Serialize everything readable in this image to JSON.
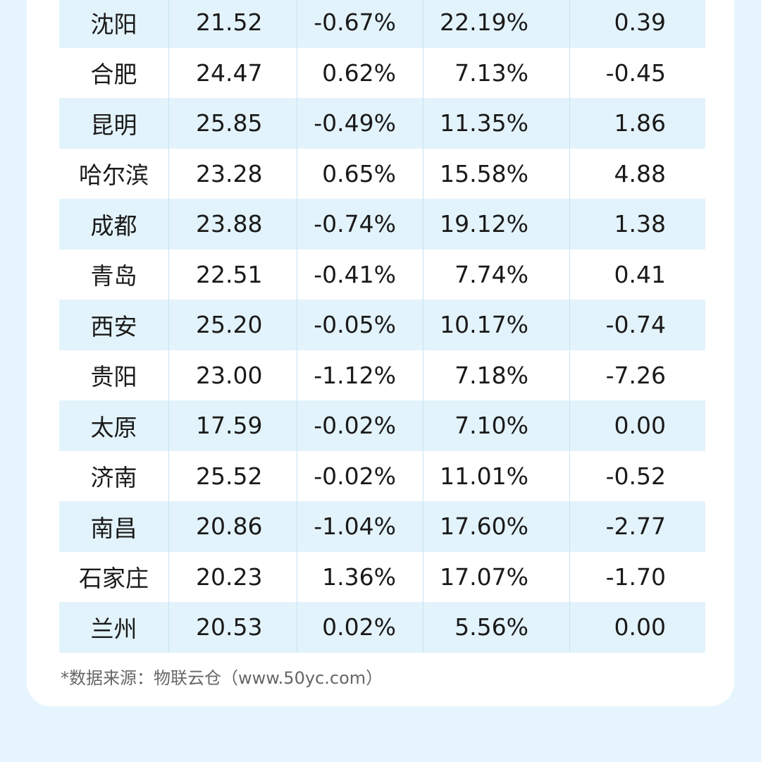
{
  "table": {
    "rows": [
      [
        "沈阳",
        "21.52",
        "-0.67%",
        "22.19%",
        "0.39"
      ],
      [
        "合肥",
        "24.47",
        "0.62%",
        "7.13%",
        "-0.45"
      ],
      [
        "昆明",
        "25.85",
        "-0.49%",
        "11.35%",
        "1.86"
      ],
      [
        "哈尔滨",
        "23.28",
        "0.65%",
        "15.58%",
        "4.88"
      ],
      [
        "成都",
        "23.88",
        "-0.74%",
        "19.12%",
        "1.38"
      ],
      [
        "青岛",
        "22.51",
        "-0.41%",
        "7.74%",
        "0.41"
      ],
      [
        "西安",
        "25.20",
        "-0.05%",
        "10.17%",
        "-0.74"
      ],
      [
        "贵阳",
        "23.00",
        "-1.12%",
        "7.18%",
        "-7.26"
      ],
      [
        "太原",
        "17.59",
        "-0.02%",
        "7.10%",
        "0.00"
      ],
      [
        "济南",
        "25.52",
        "-0.02%",
        "11.01%",
        "-0.52"
      ],
      [
        "南昌",
        "20.86",
        "-1.04%",
        "17.60%",
        "-2.77"
      ],
      [
        "石家庄",
        "20.23",
        "1.36%",
        "17.07%",
        "-1.70"
      ],
      [
        "兰州",
        "20.53",
        "0.02%",
        "5.56%",
        "0.00"
      ]
    ]
  },
  "footer": {
    "source": "*数据来源：物联云仓（www.50yc.com）"
  },
  "colors": {
    "background": "#e6f5fd",
    "card": "#ffffff",
    "row_shade": "#e3f3fb"
  }
}
